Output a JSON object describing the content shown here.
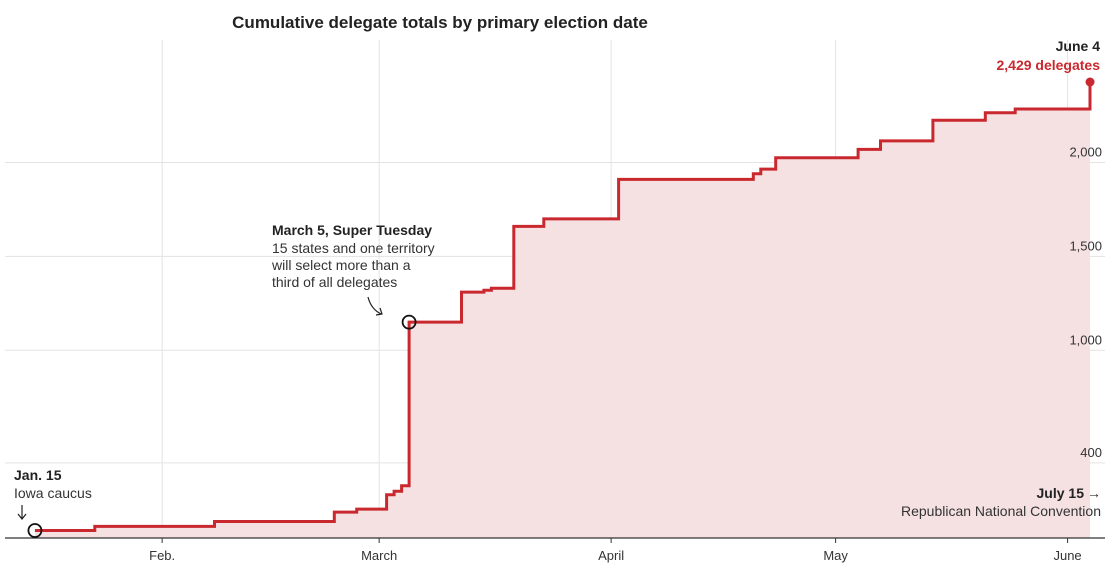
{
  "title": "Cumulative delegate totals by primary election date",
  "colors": {
    "line": "#c9282e",
    "area": "#f6e1e2",
    "grid": "#e3e3e3",
    "axis": "#333333",
    "text": "#222222"
  },
  "annotations": {
    "start": {
      "title": "Jan. 15",
      "text": "Iowa caucus"
    },
    "super_tuesday": {
      "title": "March 5, Super Tuesday",
      "lines": [
        "15 states and one territory",
        "will select more than a",
        "third of all delegates"
      ]
    },
    "end": {
      "date": "June 4",
      "value": "2,429 delegates"
    },
    "convention": {
      "title": "July 15",
      "text": "Republican National Convention",
      "arrow": "→"
    }
  },
  "chart_data": {
    "type": "line",
    "subtype": "step-area",
    "title": "Cumulative delegate totals by primary election date",
    "x_axis": {
      "type": "date",
      "range": [
        "2024-01-11",
        "2024-06-06"
      ],
      "ticks": [
        {
          "date": "2024-02-01",
          "label": "Feb."
        },
        {
          "date": "2024-03-01",
          "label": "March"
        },
        {
          "date": "2024-04-01",
          "label": "April"
        },
        {
          "date": "2024-05-01",
          "label": "May"
        },
        {
          "date": "2024-06-01",
          "label": "June"
        }
      ]
    },
    "y_axis": {
      "range": [
        0,
        2429
      ],
      "ticks": [
        400,
        1000,
        1500,
        2000
      ],
      "tick_labels": [
        "400",
        "1,000",
        "1,500",
        "2,000"
      ]
    },
    "grid": true,
    "points": [
      {
        "date": "2024-01-15",
        "value": 40
      },
      {
        "date": "2024-01-23",
        "value": 62
      },
      {
        "date": "2024-02-08",
        "value": 88
      },
      {
        "date": "2024-02-24",
        "value": 138
      },
      {
        "date": "2024-02-27",
        "value": 154
      },
      {
        "date": "2024-03-02",
        "value": 230
      },
      {
        "date": "2024-03-03",
        "value": 249
      },
      {
        "date": "2024-03-04",
        "value": 278
      },
      {
        "date": "2024-03-05",
        "value": 1150
      },
      {
        "date": "2024-03-12",
        "value": 1310
      },
      {
        "date": "2024-03-15",
        "value": 1320
      },
      {
        "date": "2024-03-16",
        "value": 1330
      },
      {
        "date": "2024-03-19",
        "value": 1660
      },
      {
        "date": "2024-03-23",
        "value": 1700
      },
      {
        "date": "2024-04-02",
        "value": 1910
      },
      {
        "date": "2024-04-20",
        "value": 1940
      },
      {
        "date": "2024-04-21",
        "value": 1965
      },
      {
        "date": "2024-04-23",
        "value": 2025
      },
      {
        "date": "2024-05-04",
        "value": 2070
      },
      {
        "date": "2024-05-07",
        "value": 2115
      },
      {
        "date": "2024-05-14",
        "value": 2225
      },
      {
        "date": "2024-05-21",
        "value": 2265
      },
      {
        "date": "2024-05-25",
        "value": 2285
      },
      {
        "date": "2024-06-04",
        "value": 2429
      }
    ]
  }
}
